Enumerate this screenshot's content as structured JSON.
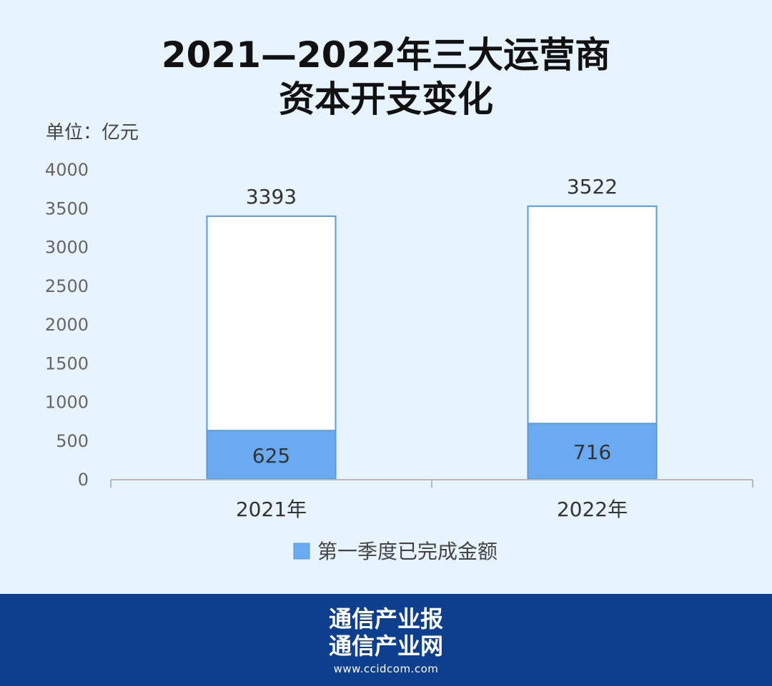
{
  "title": {
    "line1": "2021—2022年三大运营商",
    "line2": "资本开支变化"
  },
  "unit_label": "单位：亿元",
  "chart_data": {
    "type": "bar",
    "stacked": true,
    "categories": [
      "2021年",
      "2022年"
    ],
    "totals": [
      3393,
      3522
    ],
    "series": [
      {
        "name": "第一季度已完成金额",
        "values": [
          625,
          716
        ],
        "color": "#6aaaf0"
      }
    ],
    "total_color": "#ffffff",
    "border_color": "#5a9bd5",
    "ylim": [
      0,
      4000
    ],
    "yticks": [
      0,
      500,
      1000,
      1500,
      2000,
      2500,
      3000,
      3500,
      4000
    ],
    "grid": false,
    "legend": "bottom"
  },
  "footer": {
    "line1": "通信产业报",
    "line2": "通信产业网",
    "url": "www.ccidcom.com"
  },
  "colors": {
    "background": "#e7f3fd",
    "footer": "#0d3f8e"
  }
}
